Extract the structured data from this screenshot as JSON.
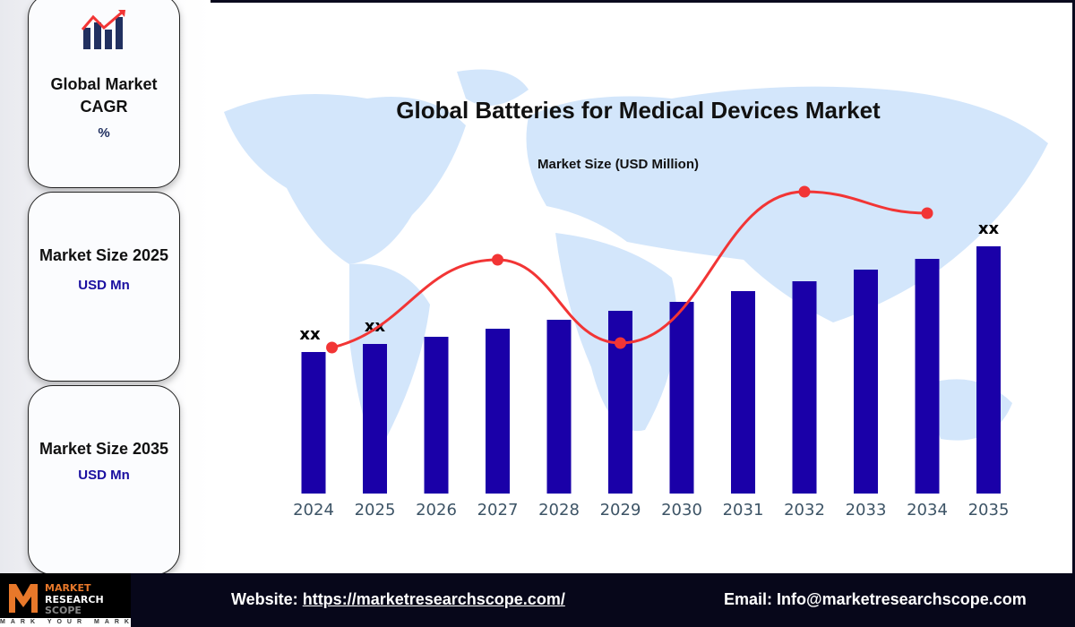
{
  "sidebar": {
    "cards": [
      {
        "title": "Global Market CAGR",
        "value": "%"
      },
      {
        "title": "Market Size 2025",
        "value": "USD Mn"
      },
      {
        "title": "Market Size 2035",
        "value": "USD Mn"
      }
    ]
  },
  "footer": {
    "logo": {
      "line1": "MARKET",
      "line2": "RESEARCH",
      "line3": "SCOPE",
      "tagline": "MARK YOUR MARKET"
    },
    "website_label": "Website:",
    "website_url": "https://marketresearchscope.com/",
    "email_label": "Email:",
    "email": "Info@marketresearchscope.com"
  },
  "colors": {
    "bar": "#1a00a8",
    "trend": "#f23535",
    "map": "#d3e6fb",
    "footer": "#07071a"
  },
  "chart_data": {
    "type": "bar",
    "title": "Global Batteries for Medical Devices Market",
    "subtitle": "Market Size (USD Million)",
    "categories": [
      "2024",
      "2025",
      "2026",
      "2027",
      "2028",
      "2029",
      "2030",
      "2031",
      "2032",
      "2033",
      "2034",
      "2035"
    ],
    "values": [
      158,
      167,
      175,
      184,
      194,
      204,
      214,
      226,
      237,
      250,
      262,
      276
    ],
    "value_note": "relative bar heights; no y-axis printed",
    "data_labels": {
      "2024": "xx",
      "2025": "xx",
      "2035": "xx"
    },
    "trend_line": {
      "x": [
        "2024.3",
        "2027",
        "2029",
        "2032",
        "2034"
      ],
      "values": [
        163,
        261,
        168,
        337,
        313
      ]
    },
    "grid": false,
    "legend": "none"
  }
}
